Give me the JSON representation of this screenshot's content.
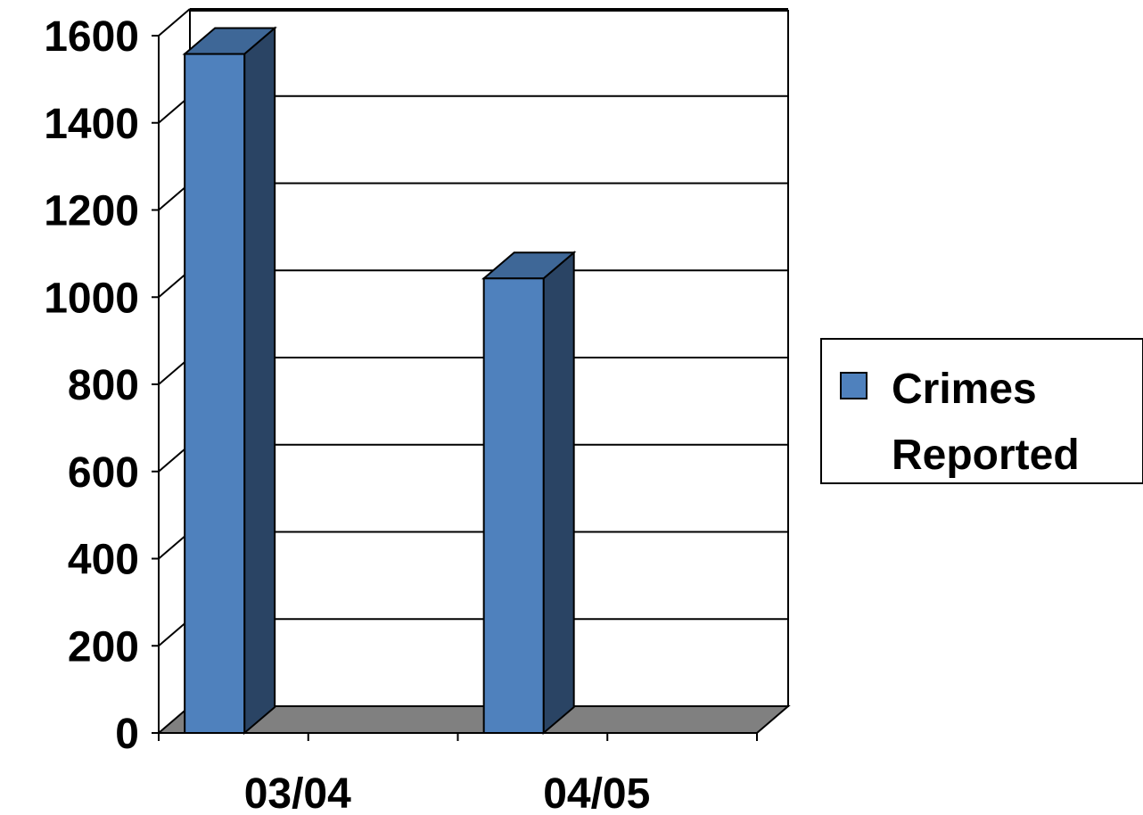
{
  "chart_data": {
    "type": "bar",
    "style": "3d-column",
    "categories": [
      "03/04",
      "04/05"
    ],
    "series": [
      {
        "name": "Crimes Reported",
        "values": [
          1560,
          1045
        ]
      }
    ],
    "yticks": [
      "0",
      "200",
      "400",
      "600",
      "800",
      "1000",
      "1200",
      "1400",
      "1600"
    ],
    "ylim": [
      0,
      1600
    ],
    "grid": true,
    "legend": {
      "position": "right",
      "lines": [
        "Crimes",
        "Reported"
      ]
    },
    "colors": {
      "bar_front": "#4F81BD",
      "bar_side": "#2A4464",
      "bar_top": "#3E6797",
      "floor": "#808080",
      "axis": "#000000"
    }
  }
}
